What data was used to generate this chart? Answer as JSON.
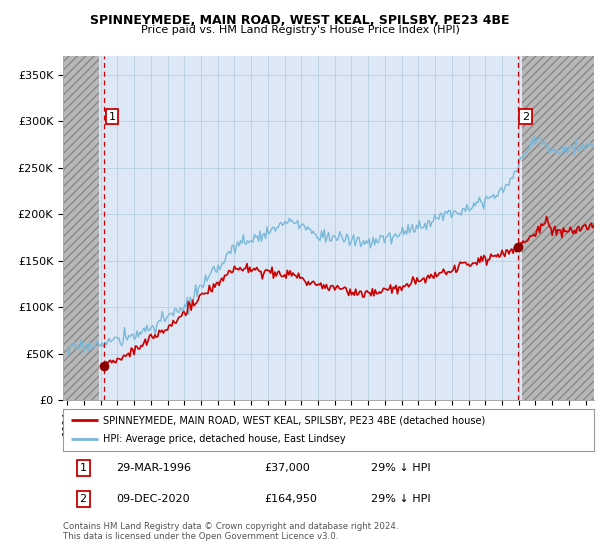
{
  "title": "SPINNEYMEDE, MAIN ROAD, WEST KEAL, SPILSBY, PE23 4BE",
  "subtitle": "Price paid vs. HM Land Registry's House Price Index (HPI)",
  "ylabel_ticks": [
    "£0",
    "£50K",
    "£100K",
    "£150K",
    "£200K",
    "£250K",
    "£300K",
    "£350K"
  ],
  "ytick_values": [
    0,
    50000,
    100000,
    150000,
    200000,
    250000,
    300000,
    350000
  ],
  "ylim": [
    0,
    370000
  ],
  "xlim_start": 1993.75,
  "xlim_end": 2025.5,
  "hatch_end": 1995.9,
  "purchase1_x": 1996.22,
  "purchase1_y": 37000,
  "purchase1_label": "1",
  "purchase2_x": 2020.94,
  "purchase2_y": 164950,
  "purchase2_label": "2",
  "hpi_color": "#7ab8d9",
  "price_color": "#cc0000",
  "dashed_line_color": "#cc0000",
  "marker_color": "#8b0000",
  "legend1": "SPINNEYMEDE, MAIN ROAD, WEST KEAL, SPILSBY, PE23 4BE (detached house)",
  "legend2": "HPI: Average price, detached house, East Lindsey",
  "footer": "Contains HM Land Registry data © Crown copyright and database right 2024.\nThis data is licensed under the Open Government Licence v3.0.",
  "bg_color": "#dce8f5",
  "grid_color": "#b8cfe0",
  "hatch_bg": "#c8c8c8"
}
